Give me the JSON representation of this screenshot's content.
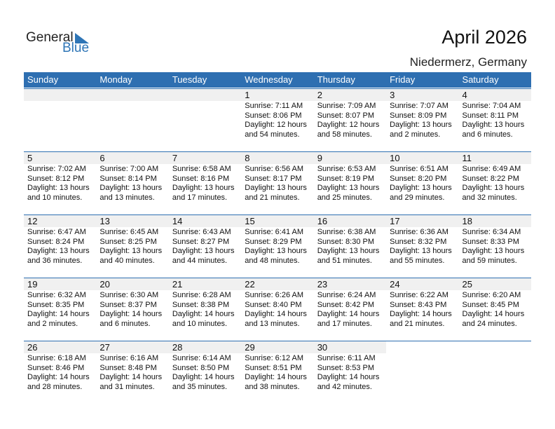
{
  "logo": {
    "line1": "General",
    "line2": "Blue"
  },
  "title": "April 2026",
  "location": "Niedermerz, Germany",
  "weekdays": [
    "Sunday",
    "Monday",
    "Tuesday",
    "Wednesday",
    "Thursday",
    "Friday",
    "Saturday"
  ],
  "colors": {
    "header": "#2e6fb1",
    "band": "#f0f0f0",
    "logo_blue": "#2e75b6"
  },
  "first_weekday_index": 3,
  "days": [
    {
      "day": "1",
      "sunrise": "Sunrise: 7:11 AM",
      "sunset": "Sunset: 8:06 PM",
      "daylight1": "Daylight: 12 hours",
      "daylight2": "and 54 minutes."
    },
    {
      "day": "2",
      "sunrise": "Sunrise: 7:09 AM",
      "sunset": "Sunset: 8:07 PM",
      "daylight1": "Daylight: 12 hours",
      "daylight2": "and 58 minutes."
    },
    {
      "day": "3",
      "sunrise": "Sunrise: 7:07 AM",
      "sunset": "Sunset: 8:09 PM",
      "daylight1": "Daylight: 13 hours",
      "daylight2": "and 2 minutes."
    },
    {
      "day": "4",
      "sunrise": "Sunrise: 7:04 AM",
      "sunset": "Sunset: 8:11 PM",
      "daylight1": "Daylight: 13 hours",
      "daylight2": "and 6 minutes."
    },
    {
      "day": "5",
      "sunrise": "Sunrise: 7:02 AM",
      "sunset": "Sunset: 8:12 PM",
      "daylight1": "Daylight: 13 hours",
      "daylight2": "and 10 minutes."
    },
    {
      "day": "6",
      "sunrise": "Sunrise: 7:00 AM",
      "sunset": "Sunset: 8:14 PM",
      "daylight1": "Daylight: 13 hours",
      "daylight2": "and 13 minutes."
    },
    {
      "day": "7",
      "sunrise": "Sunrise: 6:58 AM",
      "sunset": "Sunset: 8:16 PM",
      "daylight1": "Daylight: 13 hours",
      "daylight2": "and 17 minutes."
    },
    {
      "day": "8",
      "sunrise": "Sunrise: 6:56 AM",
      "sunset": "Sunset: 8:17 PM",
      "daylight1": "Daylight: 13 hours",
      "daylight2": "and 21 minutes."
    },
    {
      "day": "9",
      "sunrise": "Sunrise: 6:53 AM",
      "sunset": "Sunset: 8:19 PM",
      "daylight1": "Daylight: 13 hours",
      "daylight2": "and 25 minutes."
    },
    {
      "day": "10",
      "sunrise": "Sunrise: 6:51 AM",
      "sunset": "Sunset: 8:20 PM",
      "daylight1": "Daylight: 13 hours",
      "daylight2": "and 29 minutes."
    },
    {
      "day": "11",
      "sunrise": "Sunrise: 6:49 AM",
      "sunset": "Sunset: 8:22 PM",
      "daylight1": "Daylight: 13 hours",
      "daylight2": "and 32 minutes."
    },
    {
      "day": "12",
      "sunrise": "Sunrise: 6:47 AM",
      "sunset": "Sunset: 8:24 PM",
      "daylight1": "Daylight: 13 hours",
      "daylight2": "and 36 minutes."
    },
    {
      "day": "13",
      "sunrise": "Sunrise: 6:45 AM",
      "sunset": "Sunset: 8:25 PM",
      "daylight1": "Daylight: 13 hours",
      "daylight2": "and 40 minutes."
    },
    {
      "day": "14",
      "sunrise": "Sunrise: 6:43 AM",
      "sunset": "Sunset: 8:27 PM",
      "daylight1": "Daylight: 13 hours",
      "daylight2": "and 44 minutes."
    },
    {
      "day": "15",
      "sunrise": "Sunrise: 6:41 AM",
      "sunset": "Sunset: 8:29 PM",
      "daylight1": "Daylight: 13 hours",
      "daylight2": "and 48 minutes."
    },
    {
      "day": "16",
      "sunrise": "Sunrise: 6:38 AM",
      "sunset": "Sunset: 8:30 PM",
      "daylight1": "Daylight: 13 hours",
      "daylight2": "and 51 minutes."
    },
    {
      "day": "17",
      "sunrise": "Sunrise: 6:36 AM",
      "sunset": "Sunset: 8:32 PM",
      "daylight1": "Daylight: 13 hours",
      "daylight2": "and 55 minutes."
    },
    {
      "day": "18",
      "sunrise": "Sunrise: 6:34 AM",
      "sunset": "Sunset: 8:33 PM",
      "daylight1": "Daylight: 13 hours",
      "daylight2": "and 59 minutes."
    },
    {
      "day": "19",
      "sunrise": "Sunrise: 6:32 AM",
      "sunset": "Sunset: 8:35 PM",
      "daylight1": "Daylight: 14 hours",
      "daylight2": "and 2 minutes."
    },
    {
      "day": "20",
      "sunrise": "Sunrise: 6:30 AM",
      "sunset": "Sunset: 8:37 PM",
      "daylight1": "Daylight: 14 hours",
      "daylight2": "and 6 minutes."
    },
    {
      "day": "21",
      "sunrise": "Sunrise: 6:28 AM",
      "sunset": "Sunset: 8:38 PM",
      "daylight1": "Daylight: 14 hours",
      "daylight2": "and 10 minutes."
    },
    {
      "day": "22",
      "sunrise": "Sunrise: 6:26 AM",
      "sunset": "Sunset: 8:40 PM",
      "daylight1": "Daylight: 14 hours",
      "daylight2": "and 13 minutes."
    },
    {
      "day": "23",
      "sunrise": "Sunrise: 6:24 AM",
      "sunset": "Sunset: 8:42 PM",
      "daylight1": "Daylight: 14 hours",
      "daylight2": "and 17 minutes."
    },
    {
      "day": "24",
      "sunrise": "Sunrise: 6:22 AM",
      "sunset": "Sunset: 8:43 PM",
      "daylight1": "Daylight: 14 hours",
      "daylight2": "and 21 minutes."
    },
    {
      "day": "25",
      "sunrise": "Sunrise: 6:20 AM",
      "sunset": "Sunset: 8:45 PM",
      "daylight1": "Daylight: 14 hours",
      "daylight2": "and 24 minutes."
    },
    {
      "day": "26",
      "sunrise": "Sunrise: 6:18 AM",
      "sunset": "Sunset: 8:46 PM",
      "daylight1": "Daylight: 14 hours",
      "daylight2": "and 28 minutes."
    },
    {
      "day": "27",
      "sunrise": "Sunrise: 6:16 AM",
      "sunset": "Sunset: 8:48 PM",
      "daylight1": "Daylight: 14 hours",
      "daylight2": "and 31 minutes."
    },
    {
      "day": "28",
      "sunrise": "Sunrise: 6:14 AM",
      "sunset": "Sunset: 8:50 PM",
      "daylight1": "Daylight: 14 hours",
      "daylight2": "and 35 minutes."
    },
    {
      "day": "29",
      "sunrise": "Sunrise: 6:12 AM",
      "sunset": "Sunset: 8:51 PM",
      "daylight1": "Daylight: 14 hours",
      "daylight2": "and 38 minutes."
    },
    {
      "day": "30",
      "sunrise": "Sunrise: 6:11 AM",
      "sunset": "Sunset: 8:53 PM",
      "daylight1": "Daylight: 14 hours",
      "daylight2": "and 42 minutes."
    }
  ]
}
